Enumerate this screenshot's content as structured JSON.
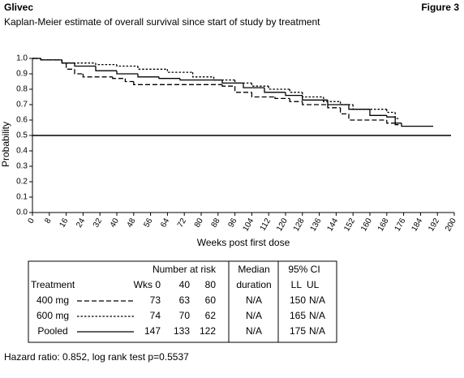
{
  "header": {
    "title": "Glivec",
    "figure": "Figure 3"
  },
  "chart_data": {
    "type": "step",
    "title": "Kaplan-Meier estimate of overall survival since start of study by treatment",
    "x_label": "Weeks post first dose",
    "y_label": "Probability",
    "xlim": [
      0,
      200
    ],
    "ylim": [
      0,
      1
    ],
    "xticks": [
      0,
      8,
      16,
      24,
      32,
      40,
      48,
      56,
      64,
      72,
      80,
      88,
      96,
      104,
      112,
      120,
      128,
      136,
      144,
      152,
      160,
      168,
      176,
      184,
      192,
      200
    ],
    "yticks": [
      {
        "value": 0,
        "label": "0.0"
      },
      0.1,
      0.2,
      0.3,
      0.4,
      0.5,
      0.6,
      0.7,
      0.8,
      0.9,
      {
        "value": 1,
        "label": "1.0"
      }
    ],
    "hline": 0.5,
    "grid": false,
    "series": [
      {
        "name": "400 mg",
        "color": "#000000",
        "line_style": "dashed",
        "x": [
          0,
          4,
          14,
          16,
          20,
          24,
          38,
          44,
          48,
          90,
          96,
          104,
          115,
          122,
          128,
          140,
          146,
          150,
          168,
          172,
          174
        ],
        "values": [
          1.0,
          0.99,
          0.97,
          0.93,
          0.9,
          0.88,
          0.87,
          0.85,
          0.83,
          0.82,
          0.78,
          0.75,
          0.74,
          0.72,
          0.7,
          0.68,
          0.64,
          0.6,
          0.58,
          0.57,
          0.57
        ]
      },
      {
        "name": "600 mg",
        "color": "#000000",
        "line_style": "dotted",
        "x": [
          0,
          4,
          14,
          30,
          40,
          50,
          64,
          76,
          86,
          96,
          104,
          112,
          122,
          128,
          138,
          146,
          152,
          168,
          172,
          174
        ],
        "values": [
          1.0,
          0.99,
          0.97,
          0.96,
          0.95,
          0.93,
          0.91,
          0.88,
          0.86,
          0.84,
          0.82,
          0.8,
          0.78,
          0.75,
          0.72,
          0.7,
          0.67,
          0.65,
          0.61,
          0.61
        ]
      },
      {
        "name": "Pooled",
        "color": "#000000",
        "line_style": "solid",
        "x": [
          0,
          4,
          14,
          20,
          30,
          40,
          50,
          60,
          70,
          90,
          100,
          110,
          120,
          128,
          140,
          150,
          160,
          168,
          172,
          175,
          190
        ],
        "values": [
          1.0,
          0.99,
          0.97,
          0.95,
          0.92,
          0.9,
          0.88,
          0.87,
          0.86,
          0.84,
          0.81,
          0.78,
          0.76,
          0.73,
          0.7,
          0.67,
          0.63,
          0.62,
          0.58,
          0.56,
          0.56
        ]
      }
    ]
  },
  "risk_table": {
    "treatment": "Treatment",
    "at_risk": "Number at risk",
    "wks": "Wks",
    "weeks": [
      0,
      40,
      80
    ],
    "median_1": "Median",
    "median_2": "duration",
    "ci": "95% CI",
    "ll": "LL",
    "ul": "UL",
    "rows": [
      {
        "at_risk": [
          73,
          63,
          60
        ],
        "median": "N/A",
        "ll": "150",
        "ul": "N/A"
      },
      {
        "at_risk": [
          74,
          70,
          62
        ],
        "median": "N/A",
        "ll": "165",
        "ul": "N/A"
      },
      {
        "at_risk": [
          147,
          133,
          122
        ],
        "median": "N/A",
        "ll": "175",
        "ul": "N/A"
      }
    ]
  },
  "footnote": "Hazard ratio: 0.852, log rank test p=0.5537"
}
